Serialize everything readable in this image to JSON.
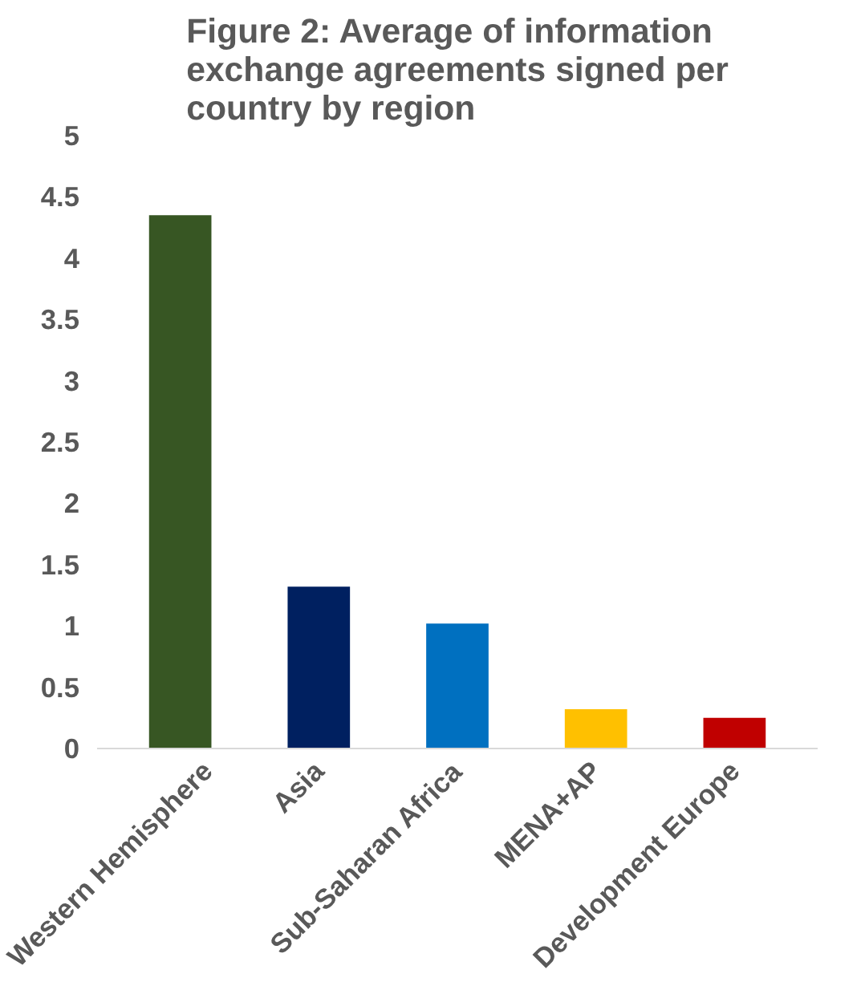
{
  "chart_data": {
    "type": "bar",
    "title": "Figure 2: Average of information exchange agreements signed per country by region",
    "categories": [
      "Western Hemisphere",
      "Asia",
      "Sub-Saharan Africa",
      "MENA+AP",
      "Development Europe"
    ],
    "values": [
      4.35,
      1.32,
      1.02,
      0.32,
      0.25
    ],
    "colors": [
      "#375623",
      "#002060",
      "#0070c0",
      "#ffc000",
      "#c00000"
    ],
    "ylim": [
      0,
      5
    ],
    "yticks": [
      0,
      0.5,
      1,
      1.5,
      2,
      2.5,
      3,
      3.5,
      4,
      4.5,
      5
    ],
    "grid": false
  }
}
